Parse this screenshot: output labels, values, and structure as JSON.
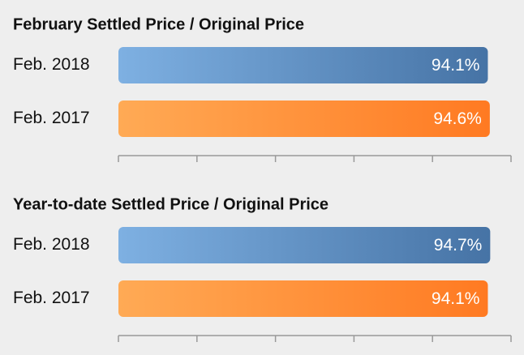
{
  "chart_data": [
    {
      "type": "bar",
      "orientation": "horizontal",
      "title": "February Settled Price / Original Price",
      "categories": [
        "Feb. 2018",
        "Feb. 2017"
      ],
      "values": [
        94.1,
        94.6
      ],
      "value_labels": [
        "94.1%",
        "94.6%"
      ],
      "colors": [
        {
          "from": "#7eb0e2",
          "to": "#4673a5"
        },
        {
          "from": "#ffaa55",
          "to": "#ff7a22"
        }
      ],
      "xlim": [
        0,
        100
      ],
      "xticks": [
        0,
        20,
        40,
        60,
        80,
        100
      ]
    },
    {
      "type": "bar",
      "orientation": "horizontal",
      "title": "Year-to-date Settled Price / Original Price",
      "categories": [
        "Feb. 2018",
        "Feb. 2017"
      ],
      "values": [
        94.7,
        94.1
      ],
      "value_labels": [
        "94.7%",
        "94.1%"
      ],
      "colors": [
        {
          "from": "#7eb0e2",
          "to": "#4673a5"
        },
        {
          "from": "#ffaa55",
          "to": "#ff7a22"
        }
      ],
      "xlim": [
        0,
        100
      ],
      "xticks": [
        0,
        20,
        40,
        60,
        80,
        100
      ]
    }
  ]
}
